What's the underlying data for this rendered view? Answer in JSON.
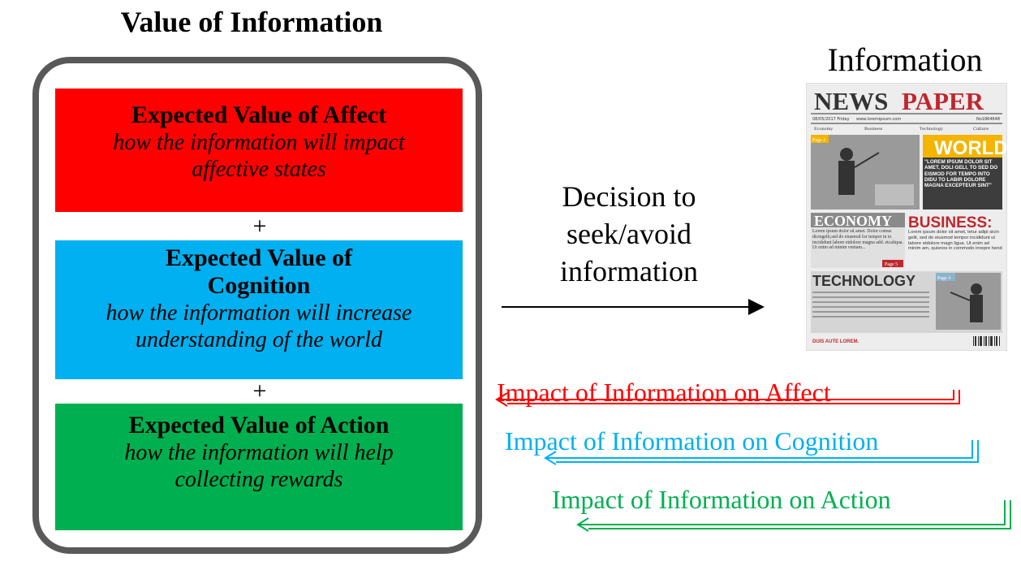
{
  "title": "Value of Information",
  "boxes": {
    "affect": {
      "heading": "Expected Value of Affect",
      "description": "how the information will impact affective states",
      "color": "#ff0000"
    },
    "cognition": {
      "heading": "Expected Value of Cognition",
      "description": "how the information will increase understanding of the world",
      "color": "#00b0f0"
    },
    "action": {
      "heading": "Expected Value of Action",
      "description": "how the information will help collecting rewards",
      "color": "#00b050"
    }
  },
  "plus_sign": "+",
  "decision_text": "Decision to seek/avoid information",
  "information_label": "Information",
  "newspaper": {
    "masthead_dark": "NEWS",
    "masthead_red": "PAPER",
    "date_line": "08/05/2017 Friday",
    "url": "www.loremipsum.com",
    "issue": "No1864648",
    "sections": [
      "Economy",
      "Business",
      "Technology",
      "Culture"
    ],
    "world_heading": "WORLD",
    "world_quote": "\"LOREM IPSUM DOLOR SIT AMET, DOLI GELI, TO SED DO EISMOD FOR TEMPO INTO DIDU TO LABIR DOLORE MAGNA EXCEPTEUR SINT\"",
    "page2": "Page 2",
    "economy_heading": "ECONOMY",
    "economy_text": "Lorem ipsum dolor sit amet. Dolor comus dicingelit,sed do eiusmod for tempor in to incididunt labore etdolore magna add. etcaliqua. Ut enim ad minim veniam...",
    "page5": "Page 5",
    "business_heading": "BUSINESS:",
    "business_text": "Lorem ipsum dolor sit amet, tetur adipi sicin gelit, sed do eiusmod tempor incididunt ut labore etdolore magn ligua. Ut enim ad minim am, quisnos in commodo inrepre hend",
    "technology_heading": "TECHNOLOGY",
    "page4": "Page 4",
    "footer": "DUIS AUTE LOREM."
  },
  "impacts": {
    "affect": {
      "label": "Impact of Information on Affect",
      "color": "#ff0000"
    },
    "cognition": {
      "label": "Impact of Information on Cognition",
      "color": "#00b0f0"
    },
    "action": {
      "label": "Impact of Information on Action",
      "color": "#00b050"
    }
  }
}
